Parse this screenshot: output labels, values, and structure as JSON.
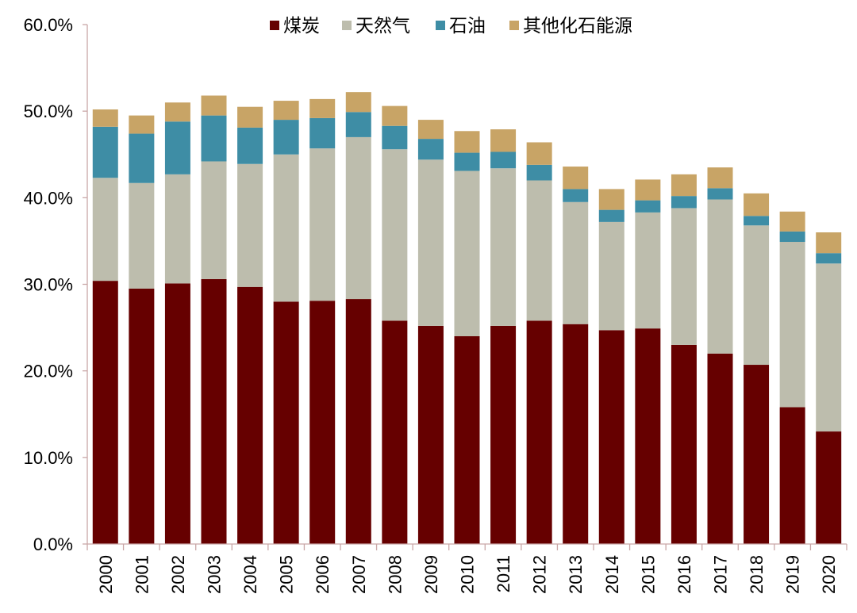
{
  "chart_data": {
    "type": "bar",
    "stacked": true,
    "title": "",
    "xlabel": "",
    "ylabel": "",
    "ylim": [
      0,
      60
    ],
    "yticks": [
      "0.0%",
      "10.0%",
      "20.0%",
      "30.0%",
      "40.0%",
      "50.0%",
      "60.0%"
    ],
    "legend_position": "top",
    "categories": [
      "2000",
      "2001",
      "2002",
      "2003",
      "2004",
      "2005",
      "2006",
      "2007",
      "2008",
      "2009",
      "2010",
      "2011",
      "2012",
      "2013",
      "2014",
      "2015",
      "2016",
      "2017",
      "2018",
      "2019",
      "2020"
    ],
    "series": [
      {
        "name": "煤炭",
        "color": "#660000",
        "values": [
          30.4,
          29.5,
          30.1,
          30.6,
          29.7,
          28.0,
          28.1,
          28.3,
          25.8,
          25.2,
          24.0,
          25.2,
          25.8,
          25.4,
          24.7,
          24.9,
          23.0,
          22.0,
          20.7,
          15.8,
          13.0
        ]
      },
      {
        "name": "天然气",
        "color": "#BDBDAD",
        "values": [
          11.9,
          12.2,
          12.6,
          13.6,
          14.2,
          17.0,
          17.6,
          18.7,
          19.8,
          19.2,
          19.1,
          18.2,
          16.2,
          14.1,
          12.5,
          13.4,
          15.8,
          17.8,
          16.1,
          19.1,
          19.4
        ]
      },
      {
        "name": "石油",
        "color": "#3E8DA5",
        "values": [
          5.9,
          5.7,
          6.1,
          5.3,
          4.2,
          4.0,
          3.5,
          2.9,
          2.7,
          2.4,
          2.1,
          1.9,
          1.8,
          1.5,
          1.4,
          1.4,
          1.4,
          1.3,
          1.1,
          1.2,
          1.2
        ]
      },
      {
        "name": "其他化石能源",
        "color": "#C8A466",
        "values": [
          2.0,
          2.1,
          2.2,
          2.3,
          2.4,
          2.2,
          2.2,
          2.3,
          2.3,
          2.2,
          2.5,
          2.6,
          2.6,
          2.6,
          2.4,
          2.4,
          2.5,
          2.4,
          2.6,
          2.3,
          2.4
        ]
      }
    ]
  }
}
